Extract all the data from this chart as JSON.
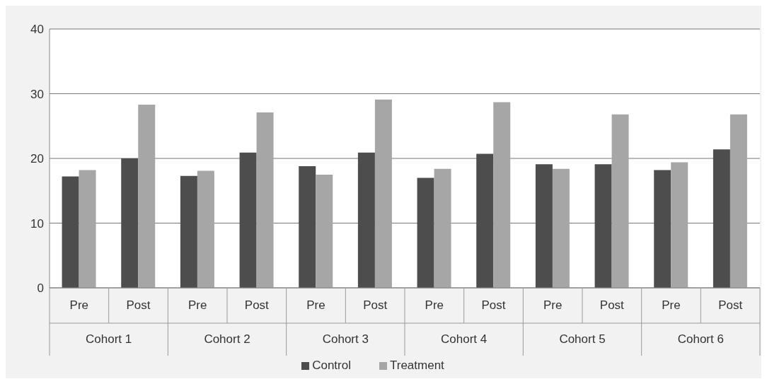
{
  "chart_data": {
    "type": "bar",
    "categories": [
      "Pre",
      "Post",
      "Pre",
      "Post",
      "Pre",
      "Post",
      "Pre",
      "Post",
      "Pre",
      "Post",
      "Pre",
      "Post"
    ],
    "annotations": [
      "Cohort 1",
      "Cohort 2",
      "Cohort 3",
      "Cohort 4",
      "Cohort 5",
      "Cohort 6"
    ],
    "series": [
      {
        "name": "Control",
        "color": "#4d4d4d",
        "values": [
          17.2,
          20.0,
          17.3,
          20.9,
          18.8,
          20.9,
          17.0,
          20.7,
          19.1,
          19.1,
          18.2,
          21.4
        ]
      },
      {
        "name": "Treatment",
        "color": "#a6a6a6",
        "values": [
          18.2,
          28.3,
          18.1,
          27.1,
          17.5,
          29.1,
          18.4,
          28.7,
          18.4,
          26.8,
          19.4,
          26.8
        ]
      }
    ],
    "ylim": [
      0,
      40
    ],
    "yticks": [
      0,
      10,
      20,
      30,
      40
    ],
    "grid": "y",
    "legend": "bottom"
  }
}
